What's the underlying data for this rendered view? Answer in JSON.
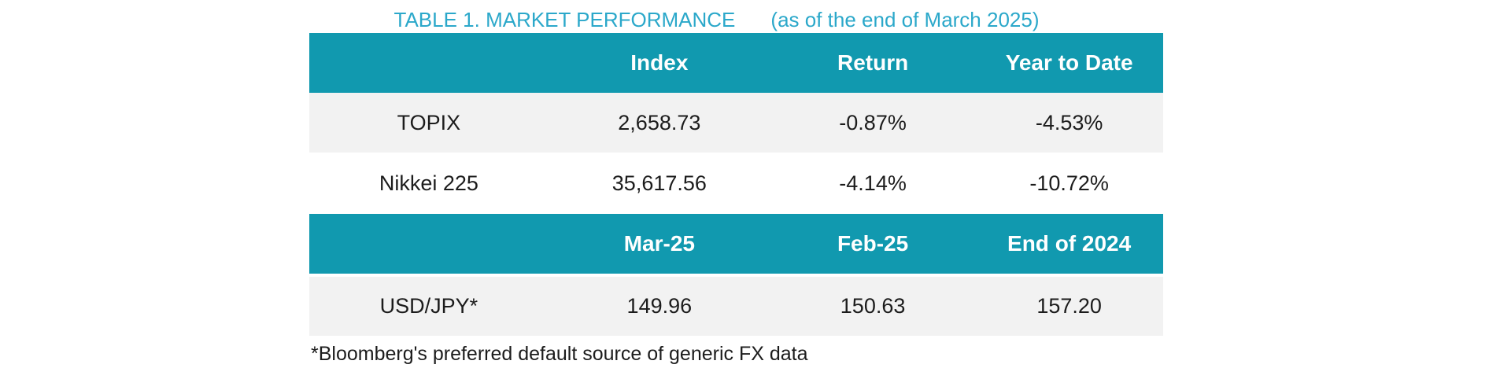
{
  "title": {
    "main": "TABLE 1. MARKET PERFORMANCE",
    "suffix": "(as of the end of March 2025)"
  },
  "colors": {
    "header_band_bg": "#1199AF",
    "header_band_text": "#FFFFFF",
    "title_text": "#2BA8CA",
    "alt_row_bg": "#F2F2F2",
    "body_text": "#1C1C1C"
  },
  "index_table": {
    "headers": [
      "",
      "Index",
      "Return",
      "Year to Date"
    ],
    "rows": [
      {
        "label": "TOPIX",
        "index": "2,658.73",
        "return": "-0.87%",
        "ytd": "-4.53%"
      },
      {
        "label": "Nikkei 225",
        "index": "35,617.56",
        "return": "-4.14%",
        "ytd": "-10.72%"
      }
    ]
  },
  "fx_table": {
    "headers": [
      "",
      "Mar-25",
      "Feb-25",
      "End of 2024"
    ],
    "rows": [
      {
        "label": "USD/JPY*",
        "mar25": "149.96",
        "feb25": "150.63",
        "end2024": "157.20"
      }
    ]
  },
  "footnote": "*Bloomberg's preferred default source of generic FX data"
}
